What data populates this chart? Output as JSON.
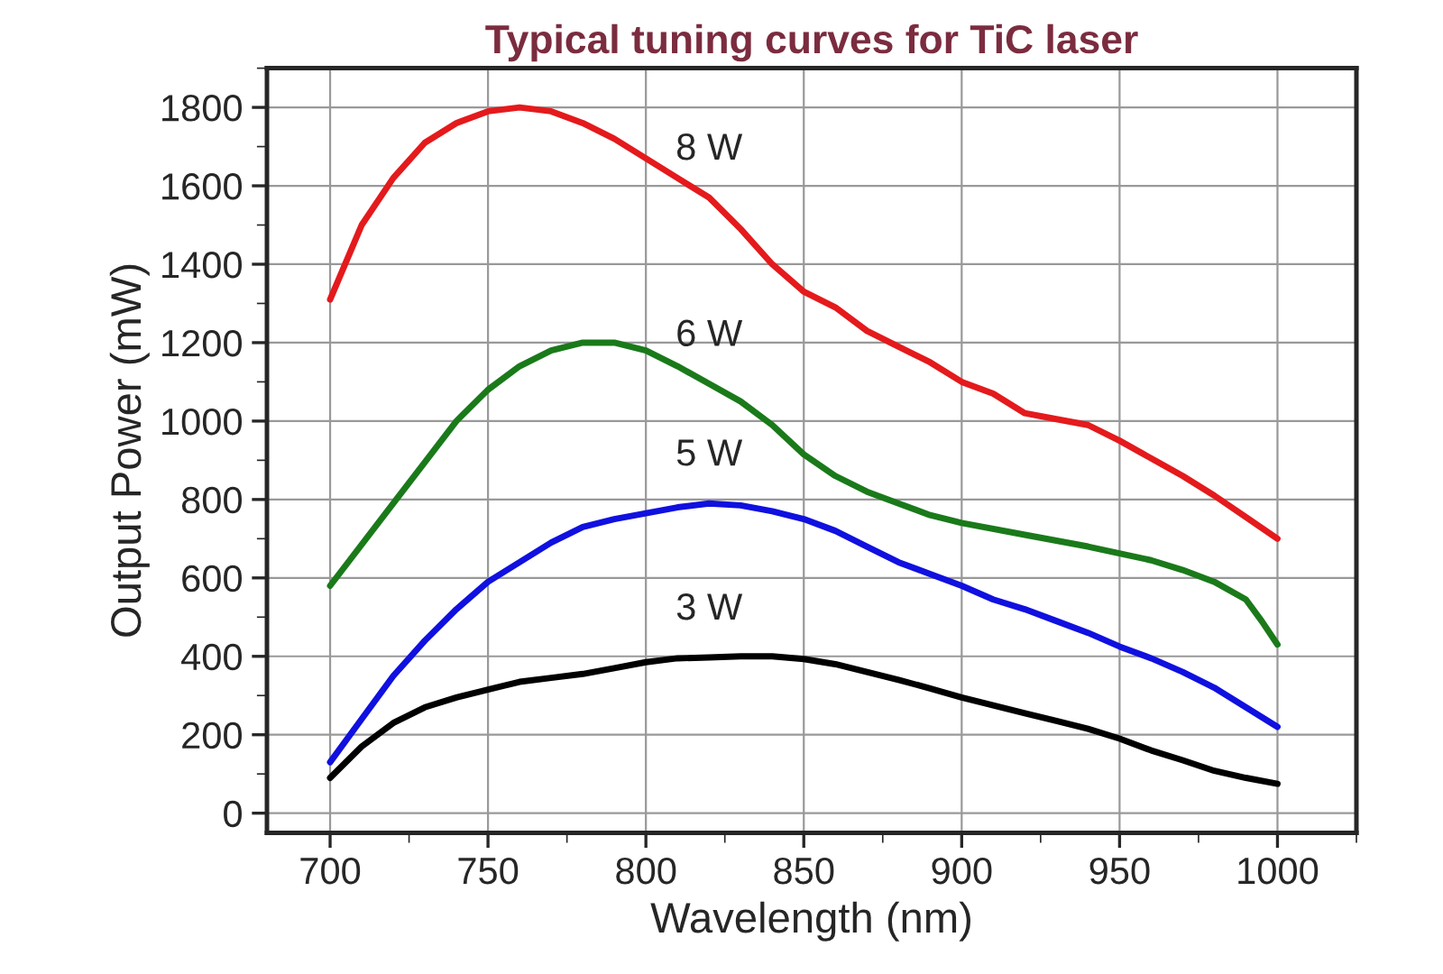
{
  "chart_data": {
    "type": "line",
    "title": "Typical tuning curves for TiC laser",
    "xlabel": "Wavelength (nm)",
    "ylabel": "Output Power (mW)",
    "x": [
      700,
      710,
      720,
      730,
      740,
      750,
      760,
      770,
      780,
      790,
      800,
      810,
      820,
      830,
      840,
      850,
      860,
      870,
      880,
      890,
      900,
      910,
      920,
      930,
      940,
      950,
      960,
      970,
      980,
      990,
      1000
    ],
    "series": [
      {
        "name": "8 W",
        "color": "#e41a1c",
        "values": [
          1310,
          1500,
          1620,
          1710,
          1760,
          1790,
          1800,
          1790,
          1760,
          1720,
          1670,
          1620,
          1570,
          1490,
          1400,
          1330,
          1290,
          1230,
          1190,
          1150,
          1100,
          1070,
          1020,
          1005,
          990,
          950,
          905,
          860,
          810,
          755,
          700
        ]
      },
      {
        "name": "6 W",
        "color": "#1a7a1a",
        "x": [
          700,
          720,
          740,
          750,
          760,
          770,
          780,
          790,
          800,
          810,
          820,
          830,
          840,
          850,
          860,
          870,
          880,
          890,
          900,
          920,
          940,
          960,
          970,
          980,
          990,
          995,
          1000
        ],
        "values": [
          580,
          790,
          1000,
          1080,
          1140,
          1180,
          1200,
          1200,
          1180,
          1140,
          1095,
          1050,
          990,
          915,
          860,
          820,
          790,
          760,
          740,
          710,
          680,
          645,
          620,
          590,
          545,
          490,
          430
        ]
      },
      {
        "name": "5 W",
        "color": "#1010e0",
        "values": [
          130,
          240,
          350,
          440,
          520,
          590,
          640,
          690,
          730,
          750,
          765,
          780,
          790,
          785,
          770,
          750,
          720,
          680,
          640,
          610,
          580,
          545,
          520,
          490,
          460,
          425,
          395,
          360,
          320,
          270,
          220
        ]
      },
      {
        "name": "3 W",
        "color": "#000000",
        "values": [
          90,
          170,
          230,
          270,
          295,
          315,
          335,
          345,
          355,
          370,
          385,
          395,
          397,
          400,
          400,
          393,
          380,
          360,
          340,
          318,
          295,
          275,
          255,
          235,
          215,
          190,
          160,
          135,
          108,
          90,
          75
        ]
      }
    ],
    "xlim": [
      680,
      1025
    ],
    "ylim": [
      -50,
      1900
    ],
    "xticks": [
      700,
      750,
      800,
      850,
      900,
      950,
      1000
    ],
    "yticks": [
      0,
      200,
      400,
      600,
      800,
      1000,
      1200,
      1400,
      1600,
      1800
    ],
    "grid": true,
    "legend": false,
    "marker": "none",
    "line_style": "solid"
  }
}
